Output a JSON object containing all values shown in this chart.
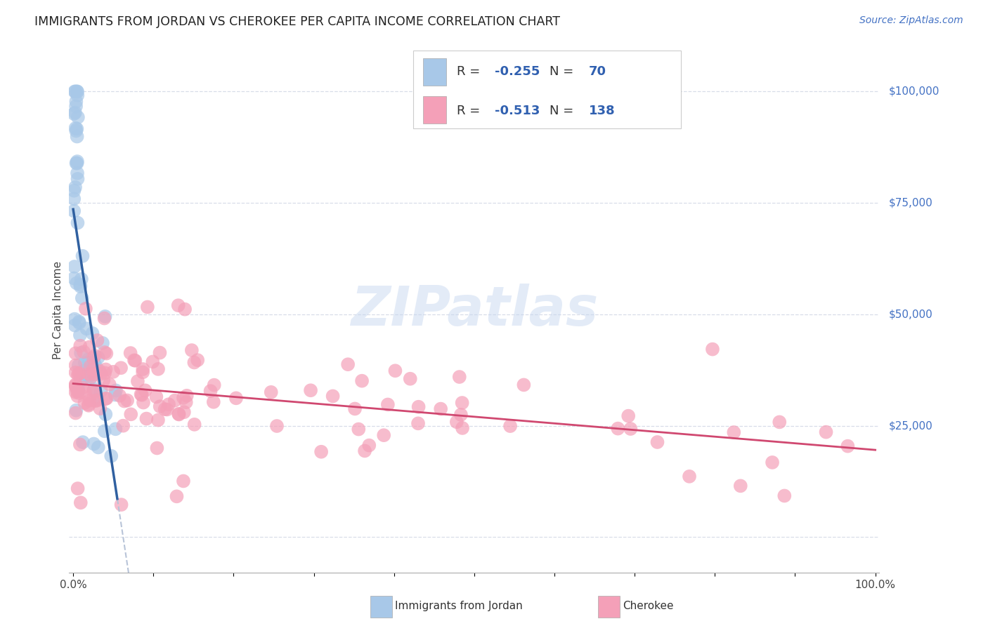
{
  "title": "IMMIGRANTS FROM JORDAN VS CHEROKEE PER CAPITA INCOME CORRELATION CHART",
  "source": "Source: ZipAtlas.com",
  "ylabel": "Per Capita Income",
  "yticks": [
    0,
    25000,
    50000,
    75000,
    100000
  ],
  "ytick_labels": [
    "",
    "$25,000",
    "$50,000",
    "$75,000",
    "$100,000"
  ],
  "blue_color": "#a8c8e8",
  "pink_color": "#f4a0b8",
  "blue_line_color": "#3060a0",
  "pink_line_color": "#d04870",
  "dashed_line_color": "#b8c4d8",
  "background_color": "#ffffff",
  "grid_color": "#d8dde8",
  "xlim": [
    -0.005,
    1.005
  ],
  "ylim": [
    -8000,
    110000
  ],
  "watermark": "ZIPatlas",
  "title_fontsize": 12.5,
  "source_fontsize": 10,
  "tick_fontsize": 11,
  "legend_fontsize": 13,
  "legend1_r_val": "-0.255",
  "legend1_n_val": "70",
  "legend2_r_val": "-0.513",
  "legend2_n_val": "138"
}
